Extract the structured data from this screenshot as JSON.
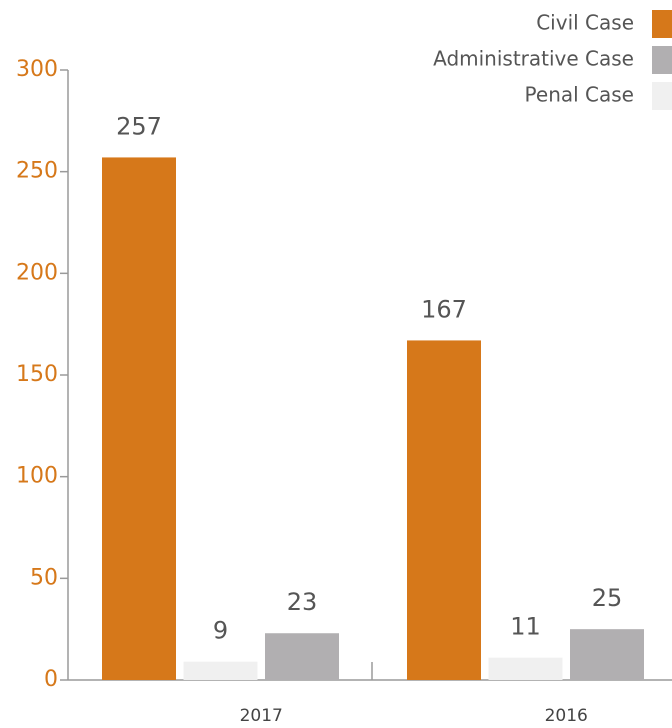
{
  "chart_data": {
    "type": "bar",
    "categories": [
      "2017",
      "2016"
    ],
    "series": [
      {
        "name": "Civil Case",
        "color": "#d6781a",
        "values": [
          257,
          167
        ]
      },
      {
        "name": "Administrative Case",
        "color": "#b1afb1",
        "values": [
          23,
          25
        ]
      },
      {
        "name": "Penal Case",
        "color": "#f0f0f0",
        "values": [
          9,
          11
        ]
      }
    ],
    "ylim": [
      0,
      300
    ],
    "yticks": [
      0,
      50,
      100,
      150,
      200,
      250,
      300
    ],
    "legend": "top-right"
  }
}
